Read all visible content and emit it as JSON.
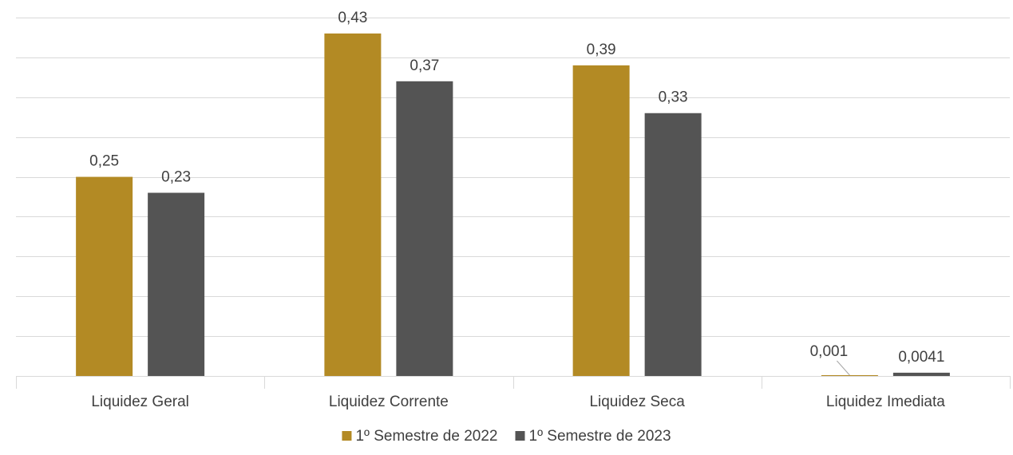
{
  "chart_data": {
    "type": "bar",
    "categories": [
      "Liquidez Geral",
      "Liquidez Corrente",
      "Liquidez Seca",
      "Liquidez Imediata"
    ],
    "series": [
      {
        "name": "1º Semestre de 2022",
        "values": [
          0.25,
          0.43,
          0.39,
          0.001
        ],
        "labels": [
          "0,25",
          "0,43",
          "0,39",
          "0,001"
        ],
        "color": "#b38a24"
      },
      {
        "name": "1º Semestre de 2023",
        "values": [
          0.23,
          0.37,
          0.33,
          0.0041
        ],
        "labels": [
          "0,23",
          "0,37",
          "0,33",
          "0,0041"
        ],
        "color": "#545454"
      }
    ],
    "ylim": [
      0,
      0.45
    ],
    "gridlines": true,
    "y_tick_labels_visible": false,
    "legend": "bottom",
    "grid_color": "#d9d9d9",
    "text_color": "#404040"
  }
}
